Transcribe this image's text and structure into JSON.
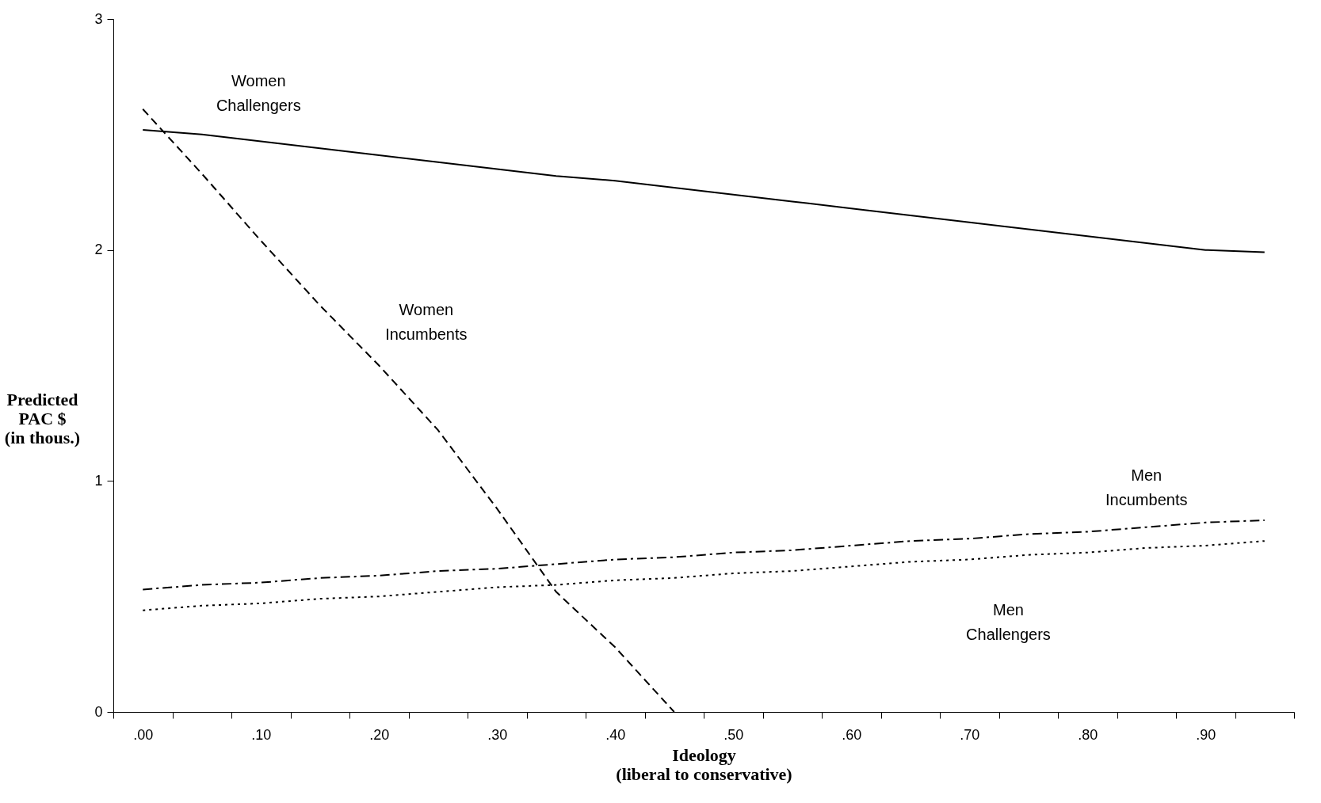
{
  "chart_data": {
    "type": "line",
    "xlabel": "Ideology\n(liberal to conservative)",
    "ylabel": "Predicted\nPAC $\n(in thous.)",
    "categories": [
      ".00",
      null,
      ".10",
      null,
      ".20",
      null,
      ".30",
      null,
      ".40",
      null,
      ".50",
      null,
      ".60",
      null,
      ".70",
      null,
      ".80",
      null,
      ".90",
      null
    ],
    "series": [
      {
        "color": "#000000",
        "line_style": "solid",
        "values": [
          2.52,
          2.5,
          2.47,
          2.44,
          2.41,
          2.38,
          2.35,
          2.32,
          2.3,
          2.27,
          2.24,
          2.21,
          2.18,
          2.15,
          2.12,
          2.09,
          2.06,
          2.03,
          2.0,
          1.99
        ]
      },
      {
        "color": "#000000",
        "line_style": "dashed",
        "values": [
          2.61,
          2.33,
          2.04,
          1.76,
          1.5,
          1.22,
          0.88,
          0.52,
          0.28,
          0.0,
          null,
          null,
          null,
          null,
          null,
          null,
          null,
          null,
          null,
          null
        ]
      },
      {
        "color": "#000000",
        "line_style": "dashdot",
        "values": [
          0.53,
          0.55,
          0.56,
          0.58,
          0.59,
          0.61,
          0.62,
          0.64,
          0.66,
          0.67,
          0.69,
          0.7,
          0.72,
          0.74,
          0.75,
          0.77,
          0.78,
          0.8,
          0.82,
          0.83
        ]
      },
      {
        "color": "#000000",
        "line_style": "dotted",
        "values": [
          0.44,
          0.46,
          0.47,
          0.49,
          0.5,
          0.52,
          0.54,
          0.55,
          0.57,
          0.58,
          0.6,
          0.61,
          0.63,
          0.65,
          0.66,
          0.68,
          0.69,
          0.71,
          0.72,
          0.74
        ]
      }
    ],
    "ylim": [
      0,
      3
    ],
    "yticks": [
      0,
      1,
      2,
      3
    ],
    "grid": false,
    "annotations": [
      "Women\nChallengers",
      "Women\nIncumbents",
      "Men\nIncumbents",
      "Men\nChallengers"
    ]
  }
}
